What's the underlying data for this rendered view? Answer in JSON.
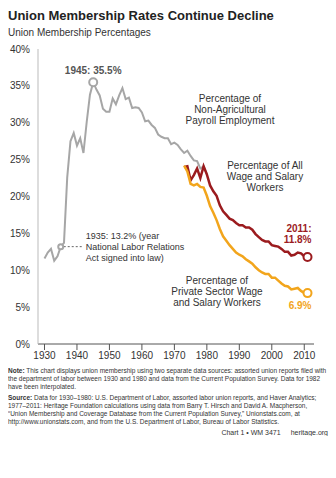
{
  "chart_data": {
    "type": "line",
    "title": "Union Membership Rates Continue Decline",
    "subtitle": "Union Membership Percentages",
    "x": [
      1930,
      1931,
      1932,
      1933,
      1934,
      1935,
      1936,
      1937,
      1938,
      1939,
      1940,
      1941,
      1942,
      1943,
      1944,
      1945,
      1946,
      1947,
      1948,
      1949,
      1950,
      1951,
      1952,
      1953,
      1954,
      1955,
      1956,
      1957,
      1958,
      1959,
      1960,
      1961,
      1962,
      1963,
      1964,
      1965,
      1966,
      1967,
      1968,
      1969,
      1970,
      1971,
      1972,
      1973,
      1974,
      1975,
      1976,
      1977,
      1978,
      1979,
      1980,
      1981,
      1982,
      1983,
      1984,
      1985,
      1986,
      1987,
      1988,
      1989,
      1990,
      1991,
      1992,
      1993,
      1994,
      1995,
      1996,
      1997,
      1998,
      1999,
      2000,
      2001,
      2002,
      2003,
      2004,
      2005,
      2006,
      2007,
      2008,
      2009,
      2010,
      2011
    ],
    "series": [
      {
        "name": "Percentage of Non-Agricultural Payroll Employment",
        "color": "#a6a6a6",
        "values": [
          11.6,
          12.4,
          12.9,
          11.3,
          11.9,
          13.2,
          13.7,
          22.6,
          27.5,
          28.6,
          26.9,
          27.9,
          25.9,
          30.1,
          33.8,
          35.5,
          34.5,
          33.7,
          31.9,
          31.5,
          31.5,
          33.3,
          32.5,
          33.7,
          34.7,
          33.2,
          33.4,
          32.0,
          32.1,
          32.0,
          31.4,
          30.2,
          30.3,
          29.7,
          29.3,
          28.4,
          28.1,
          27.9,
          27.9,
          27.1,
          27.3,
          27.0,
          26.4,
          25.9,
          26.2,
          25.5,
          24.9,
          24.8,
          23.8,
          24.1,
          23.0,
          null,
          null,
          null,
          null,
          null,
          null,
          null,
          null,
          null,
          null,
          null,
          null,
          null,
          null,
          null,
          null,
          null,
          null,
          null,
          null,
          null,
          null,
          null,
          null,
          null,
          null,
          null,
          null,
          null,
          null,
          null
        ]
      },
      {
        "name": "Percentage of All Wage and Salary Workers",
        "color": "#9b1b1e",
        "values": [
          null,
          null,
          null,
          null,
          null,
          null,
          null,
          null,
          null,
          null,
          null,
          null,
          null,
          null,
          null,
          null,
          null,
          null,
          null,
          null,
          null,
          null,
          null,
          null,
          null,
          null,
          null,
          null,
          null,
          null,
          null,
          null,
          null,
          null,
          null,
          null,
          null,
          null,
          null,
          null,
          null,
          null,
          null,
          24.0,
          24.1,
          22.2,
          22.9,
          23.8,
          22.5,
          24.1,
          23.0,
          21.5,
          20.7,
          20.1,
          18.8,
          18.0,
          17.5,
          17.0,
          16.8,
          16.4,
          16.1,
          16.1,
          15.8,
          15.8,
          15.5,
          14.9,
          14.5,
          14.1,
          13.9,
          13.9,
          13.4,
          13.3,
          13.2,
          12.9,
          12.5,
          12.5,
          12.0,
          12.1,
          12.4,
          12.3,
          11.9,
          11.8
        ]
      },
      {
        "name": "Percentage of Private Sector Wage and Salary Workers",
        "color": "#f2a51c",
        "values": [
          null,
          null,
          null,
          null,
          null,
          null,
          null,
          null,
          null,
          null,
          null,
          null,
          null,
          null,
          null,
          null,
          null,
          null,
          null,
          null,
          null,
          null,
          null,
          null,
          null,
          null,
          null,
          null,
          null,
          null,
          null,
          null,
          null,
          null,
          null,
          null,
          null,
          null,
          null,
          null,
          null,
          null,
          null,
          24.2,
          23.4,
          21.7,
          21.5,
          21.7,
          21.3,
          21.2,
          20.1,
          18.7,
          17.8,
          16.8,
          15.6,
          14.6,
          14.0,
          13.4,
          12.9,
          12.4,
          12.1,
          11.9,
          11.5,
          11.2,
          10.9,
          10.4,
          10.0,
          9.7,
          9.5,
          9.5,
          9.0,
          9.0,
          8.6,
          8.2,
          7.9,
          7.8,
          7.4,
          7.5,
          7.6,
          7.2,
          6.9,
          6.9
        ]
      }
    ],
    "xlim": [
      1928,
      2013
    ],
    "xticks": [
      1930,
      1940,
      1950,
      1960,
      1970,
      1980,
      1990,
      2000,
      2010
    ],
    "ylim": [
      0,
      40
    ],
    "yticks": [
      {
        "value": 0,
        "label": "0%"
      },
      {
        "value": 5,
        "label": "5%"
      },
      {
        "value": 10,
        "label": "10%"
      },
      {
        "value": 15,
        "label": "15%"
      },
      {
        "value": 20,
        "label": "20%"
      },
      {
        "value": 25,
        "label": "25%"
      },
      {
        "value": 30,
        "label": "30%"
      },
      {
        "value": 35,
        "label": "35%"
      },
      {
        "value": 40,
        "label": "40%"
      }
    ],
    "grid": false,
    "annotations": [
      {
        "x": 1935,
        "y": 13.2,
        "text": "1935: 13.2% (year National Labor Relations Act signed into law)",
        "color": "#a6a6a6"
      },
      {
        "x": 1945,
        "y": 35.5,
        "text": "1945: 35.5%",
        "color": "#a6a6a6"
      },
      {
        "x": 2011,
        "y": 11.8,
        "text": "2011: 11.8%",
        "color": "#9b1b1e"
      },
      {
        "x": 2011,
        "y": 6.9,
        "text": "6.9%",
        "color": "#f2a51c"
      }
    ],
    "note": "Note: This chart displays union membership using two separate data sources: assorted union reports filed with the department of labor between 1930 and 1980 and data from the Current Population Survey. Data for 1982 have been interpolated.",
    "source": "Source: Data for 1930–1980: U.S. Department of Labor, assorted labor union reports, and Haver Analytics; 1977–2011: Heritage Foundation calculations using data from Barry T. Hirsch and David A. Macpherson, “Union Membership and Coverage Database from the Current Population Survey,” Unionstats.com, at http://www.unionstats.com, and from the U.S. Department of Labor, Bureau of Labor Statistics.",
    "footer": [
      "Chart 1 • WM 3471",
      "heritage.org"
    ]
  }
}
